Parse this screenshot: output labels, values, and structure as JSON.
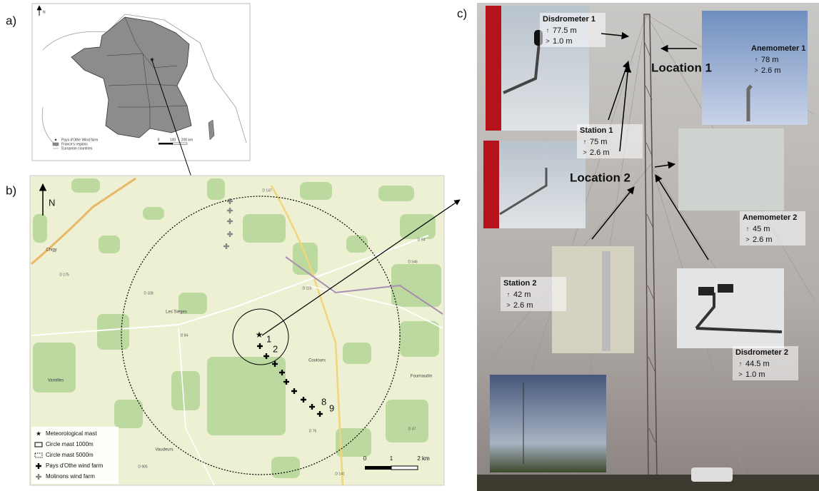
{
  "panels": {
    "a": {
      "label": "a)",
      "north": "N",
      "legend": [
        "Pays d'Othe Wind farm",
        "France's regions",
        "European countries"
      ],
      "scale": [
        "0",
        "100",
        "200 km"
      ]
    },
    "b": {
      "label": "b)",
      "north": "N",
      "places": [
        "Chigy",
        "Les Sièges",
        "Vareilles",
        "Coulours",
        "Vaudeurs",
        "Fournaudin"
      ],
      "roads": [
        "D 175",
        "D 328",
        "D 84",
        "D 905",
        "D 147",
        "D 115",
        "D 54",
        "D 546",
        "D 76",
        "D 47",
        "D 141"
      ],
      "turbine_labels": [
        "1",
        "2",
        "8",
        "9"
      ],
      "legend": [
        "Meteorological mast",
        "Circle mast 1000m",
        "Circle mast 5000m",
        "Pays d'Othe wind farm",
        "Molinons wind farm"
      ],
      "scale": [
        "0",
        "1",
        "2 km"
      ]
    },
    "c": {
      "label": "c)",
      "locations": [
        "Location 1",
        "Location 2"
      ],
      "instruments": [
        {
          "name": "Disdrometer 1",
          "height": "77.5 m",
          "distance": "1.0 m"
        },
        {
          "name": "Anemometer 1",
          "height": "78 m",
          "distance": "2.6 m"
        },
        {
          "name": "Station 1",
          "height": "75 m",
          "distance": "2.6 m"
        },
        {
          "name": "Anemometer 2",
          "height": "45 m",
          "distance": "2.6 m"
        },
        {
          "name": "Station 2",
          "height": "42 m",
          "distance": "2.6 m"
        },
        {
          "name": "Disdrometer 2",
          "height": "44.5 m",
          "distance": "1.0 m"
        }
      ]
    }
  }
}
